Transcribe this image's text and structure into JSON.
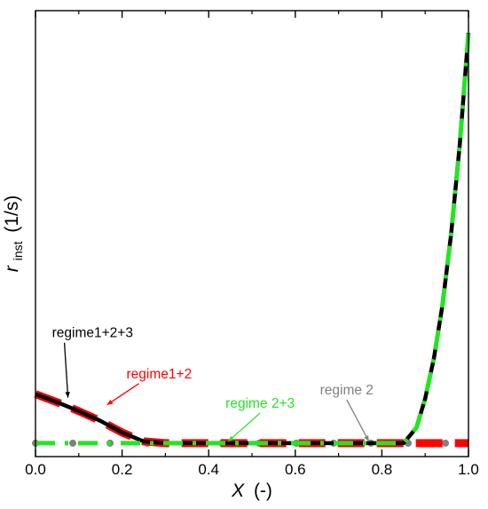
{
  "chart_data": {
    "type": "line",
    "xlabel": {
      "symbol": "X",
      "unit": "(-)"
    },
    "ylabel": {
      "symbol": "r",
      "subscript": "inst",
      "unit": "(1/s)"
    },
    "xlim": [
      0.0,
      1.0
    ],
    "ylim": [
      0.0,
      1.0
    ],
    "x_ticks": [
      "0.0",
      "0.2",
      "0.4",
      "0.6",
      "0.8",
      "1.0"
    ],
    "y_tick_labels": false,
    "grid": false,
    "series": [
      {
        "name": "regime1+2+3",
        "color": "#000000",
        "style": "solid",
        "x": [
          0.0,
          0.05,
          0.1,
          0.15,
          0.2,
          0.25,
          0.3,
          0.4,
          0.5,
          0.6,
          0.7,
          0.8,
          0.85,
          0.88,
          0.9,
          0.92,
          0.94,
          0.96,
          0.98,
          1.0
        ],
        "y": [
          0.14,
          0.122,
          0.102,
          0.08,
          0.054,
          0.034,
          0.03,
          0.03,
          0.03,
          0.03,
          0.03,
          0.03,
          0.03,
          0.065,
          0.13,
          0.22,
          0.34,
          0.5,
          0.7,
          0.95
        ]
      },
      {
        "name": "regime1+2",
        "color": "#ff0000",
        "style": "dashed",
        "x": [
          0.0,
          0.05,
          0.1,
          0.15,
          0.2,
          0.25,
          0.3,
          0.4,
          0.5,
          0.6,
          0.7,
          0.8,
          0.9,
          1.0
        ],
        "y": [
          0.14,
          0.122,
          0.102,
          0.08,
          0.054,
          0.034,
          0.03,
          0.03,
          0.03,
          0.03,
          0.03,
          0.03,
          0.03,
          0.03
        ]
      },
      {
        "name": "regime 2+3",
        "color": "#22e622",
        "style": "dash-dot",
        "x": [
          0.0,
          0.1,
          0.2,
          0.3,
          0.4,
          0.5,
          0.6,
          0.7,
          0.8,
          0.85,
          0.88,
          0.9,
          0.92,
          0.94,
          0.96,
          0.98,
          1.0
        ],
        "y": [
          0.03,
          0.03,
          0.03,
          0.03,
          0.03,
          0.03,
          0.03,
          0.03,
          0.03,
          0.03,
          0.065,
          0.13,
          0.22,
          0.34,
          0.5,
          0.7,
          0.95
        ]
      },
      {
        "name": "regime 2",
        "color": "#808080",
        "style": "dotted",
        "x": [
          0.0,
          1.0
        ],
        "y": [
          0.03,
          0.03
        ]
      }
    ],
    "annotations": [
      {
        "text": "regime1+2+3",
        "color": "#000000",
        "x": 0.075,
        "y": 0.128
      },
      {
        "text": "regime1+2",
        "color": "#ff0000",
        "x": 0.165,
        "y": 0.112
      },
      {
        "text": "regime 2+3",
        "color": "#22e622",
        "x": 0.445,
        "y": 0.03
      },
      {
        "text": "regime 2",
        "color": "#808080",
        "x": 0.77,
        "y": 0.03
      }
    ]
  }
}
